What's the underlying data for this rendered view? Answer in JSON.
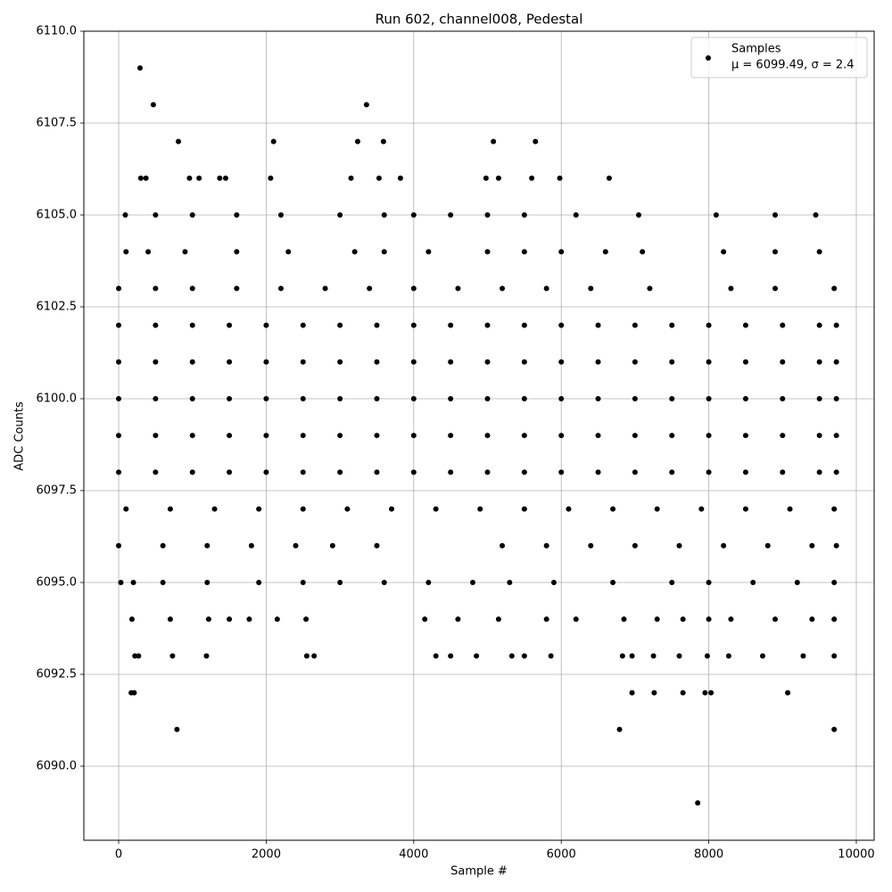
{
  "chart_data": {
    "type": "scatter",
    "title": "Run 602, channel008, Pedestal",
    "xlabel": "Sample #",
    "ylabel": "ADC Counts",
    "xlim": [
      -472,
      10242
    ],
    "ylim": [
      6087.985,
      6110
    ],
    "xticks": [
      0,
      2000,
      4000,
      6000,
      8000,
      10000
    ],
    "yticks": [
      {
        "value": 6090,
        "label": "6090.0"
      },
      {
        "value": 6092.5,
        "label": "6092.5"
      },
      {
        "value": 6095,
        "label": "6095.0"
      },
      {
        "value": 6097.5,
        "label": "6097.5"
      },
      {
        "value": 6100,
        "label": "6100.0"
      },
      {
        "value": 6102.5,
        "label": "6102.5"
      },
      {
        "value": 6105,
        "label": "6105.0"
      },
      {
        "value": 6107.5,
        "label": "6107.5"
      },
      {
        "value": 6110,
        "label": "6110.0"
      }
    ],
    "grid": true,
    "legend": "upper right",
    "legend_stats": "μ = 6099.49, σ = 2.4",
    "series": [
      {
        "name": "Samples",
        "color": "#000000",
        "x": [
          0,
          500,
          1000,
          1500,
          2000,
          2500,
          3000,
          3500,
          4000,
          4500,
          5000,
          5500,
          6000,
          6500,
          7000,
          7500,
          8000,
          8500,
          9000,
          9500,
          9730,
          0,
          500,
          1000,
          1500,
          2000,
          2500,
          3000,
          3500,
          4000,
          4500,
          5000,
          5500,
          6000,
          6500,
          7000,
          7500,
          8000,
          8500,
          9000,
          9500,
          9730,
          0,
          500,
          1000,
          1500,
          2000,
          2500,
          3000,
          3500,
          4000,
          4500,
          5000,
          5500,
          6000,
          6500,
          7000,
          7500,
          8000,
          8500,
          9000,
          9500,
          9730,
          0,
          500,
          1000,
          1500,
          2000,
          2500,
          3000,
          3500,
          4000,
          4500,
          5000,
          5500,
          6000,
          6500,
          7000,
          7500,
          8000,
          8500,
          9000,
          9500,
          9730,
          0,
          500,
          1000,
          1500,
          2000,
          2500,
          3000,
          3500,
          4000,
          4500,
          5000,
          5500,
          6000,
          6500,
          7000,
          7500,
          8000,
          8500,
          9000,
          9500,
          9730,
          100,
          700,
          1300,
          1900,
          2500,
          3100,
          3700,
          4300,
          4900,
          5500,
          6100,
          6700,
          7300,
          7900,
          8500,
          9100,
          9700,
          0,
          600,
          1200,
          1800,
          2400,
          2900,
          3500,
          5200,
          5800,
          6400,
          7000,
          7600,
          8200,
          8800,
          9400,
          9730,
          0,
          500,
          1000,
          1600,
          2200,
          2800,
          3400,
          4000,
          4600,
          5200,
          5800,
          6400,
          7200,
          8300,
          8900,
          9700,
          100,
          400,
          900,
          1600,
          2300,
          3200,
          3600,
          4200,
          5000,
          5500,
          6000,
          6600,
          7100,
          8200,
          8900,
          9500,
          90,
          500,
          1000,
          1600,
          2200,
          3000,
          3600,
          4000,
          4500,
          5000,
          5500,
          6200,
          7050,
          8100,
          8900,
          9450,
          30,
          200,
          600,
          1200,
          1900,
          2500,
          3000,
          3600,
          4200,
          4800,
          5300,
          5900,
          6700,
          7500,
          8000,
          8600,
          9200,
          9700,
          180,
          700,
          1220,
          1500,
          1770,
          2150,
          2540,
          4150,
          4600,
          5150,
          5800,
          6200,
          6850,
          7300,
          7650,
          8000,
          8300,
          8900,
          9400,
          9700,
          220,
          270,
          730,
          1190,
          2550,
          2650,
          4300,
          4500,
          4850,
          5330,
          5500,
          5860,
          6830,
          6960,
          7250,
          7600,
          7980,
          8270,
          8730,
          9280,
          9700,
          170,
          210,
          6960,
          7260,
          7650,
          7950,
          8030,
          9070,
          790,
          6790,
          9700,
          300,
          370,
          960,
          1090,
          1370,
          1450,
          2060,
          3150,
          3530,
          3820,
          4980,
          5150,
          5600,
          5980,
          6650,
          810,
          2100,
          3240,
          3590,
          5080,
          5650,
          470,
          3360,
          290,
          7850
        ],
        "values": [
          6098,
          6098,
          6098,
          6098,
          6098,
          6098,
          6098,
          6098,
          6098,
          6098,
          6098,
          6098,
          6098,
          6098,
          6098,
          6098,
          6098,
          6098,
          6098,
          6098,
          6098,
          6099,
          6099,
          6099,
          6099,
          6099,
          6099,
          6099,
          6099,
          6099,
          6099,
          6099,
          6099,
          6099,
          6099,
          6099,
          6099,
          6099,
          6099,
          6099,
          6099,
          6099,
          6100,
          6100,
          6100,
          6100,
          6100,
          6100,
          6100,
          6100,
          6100,
          6100,
          6100,
          6100,
          6100,
          6100,
          6100,
          6100,
          6100,
          6100,
          6100,
          6100,
          6100,
          6101,
          6101,
          6101,
          6101,
          6101,
          6101,
          6101,
          6101,
          6101,
          6101,
          6101,
          6101,
          6101,
          6101,
          6101,
          6101,
          6101,
          6101,
          6101,
          6101,
          6101,
          6102,
          6102,
          6102,
          6102,
          6102,
          6102,
          6102,
          6102,
          6102,
          6102,
          6102,
          6102,
          6102,
          6102,
          6102,
          6102,
          6102,
          6102,
          6102,
          6102,
          6102,
          6097,
          6097,
          6097,
          6097,
          6097,
          6097,
          6097,
          6097,
          6097,
          6097,
          6097,
          6097,
          6097,
          6097,
          6097,
          6097,
          6097,
          6096,
          6096,
          6096,
          6096,
          6096,
          6096,
          6096,
          6096,
          6096,
          6096,
          6096,
          6096,
          6096,
          6096,
          6096,
          6096,
          6103,
          6103,
          6103,
          6103,
          6103,
          6103,
          6103,
          6103,
          6103,
          6103,
          6103,
          6103,
          6103,
          6103,
          6103,
          6103,
          6104,
          6104,
          6104,
          6104,
          6104,
          6104,
          6104,
          6104,
          6104,
          6104,
          6104,
          6104,
          6104,
          6104,
          6104,
          6104,
          6105,
          6105,
          6105,
          6105,
          6105,
          6105,
          6105,
          6105,
          6105,
          6105,
          6105,
          6105,
          6105,
          6105,
          6105,
          6105,
          6095,
          6095,
          6095,
          6095,
          6095,
          6095,
          6095,
          6095,
          6095,
          6095,
          6095,
          6095,
          6095,
          6095,
          6095,
          6095,
          6095,
          6095,
          6094,
          6094,
          6094,
          6094,
          6094,
          6094,
          6094,
          6094,
          6094,
          6094,
          6094,
          6094,
          6094,
          6094,
          6094,
          6094,
          6094,
          6094,
          6094,
          6094,
          6093,
          6093,
          6093,
          6093,
          6093,
          6093,
          6093,
          6093,
          6093,
          6093,
          6093,
          6093,
          6093,
          6093,
          6093,
          6093,
          6093,
          6093,
          6093,
          6093,
          6093,
          6092,
          6092,
          6092,
          6092,
          6092,
          6092,
          6092,
          6092,
          6091,
          6091,
          6091,
          6106,
          6106,
          6106,
          6106,
          6106,
          6106,
          6106,
          6106,
          6106,
          6106,
          6106,
          6106,
          6106,
          6106,
          6106,
          6107,
          6107,
          6107,
          6107,
          6107,
          6107,
          6108,
          6108,
          6109,
          6089
        ]
      }
    ]
  }
}
